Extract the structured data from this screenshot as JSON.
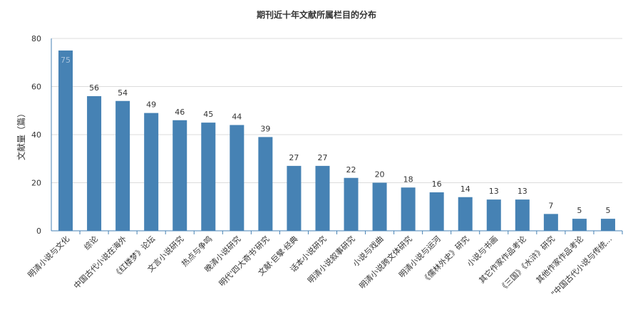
{
  "chart_data": {
    "type": "bar",
    "title": "期刊近十年文献所属栏目的分布",
    "xlabel": "",
    "ylabel": "文献量（篇）",
    "ylim": [
      0,
      80
    ],
    "yticks": [
      0,
      20,
      40,
      60,
      80
    ],
    "grid": true,
    "legend": "none",
    "categories": [
      "明清小说与文化",
      "综论",
      "中国古代小说在海外",
      "《红楼梦》论坛",
      "文言小说研究",
      "热点与争鸣",
      "晚清小说研究",
      "明代'四大奇书'研究",
      "文献·巨擘·经典",
      "话本小说研究",
      "明清小说叙事研究",
      "小说与戏曲",
      "明清小说跨文体研究",
      "明清小说与运河",
      "《儒林外史》研究",
      "小说与书画",
      "其它作家作品考论",
      "《三国》《水浒》研究",
      "其他作家作品考论",
      "\"中国古代小说与传统..."
    ],
    "values": [
      75,
      56,
      54,
      49,
      46,
      45,
      44,
      39,
      27,
      27,
      22,
      20,
      18,
      16,
      14,
      13,
      13,
      7,
      5,
      5
    ],
    "colors": {
      "bar": "#4682b4",
      "grid": "#dcdcdc",
      "axis": "#4682b4",
      "text": "#333333",
      "first_label": "#a9c4de"
    }
  }
}
